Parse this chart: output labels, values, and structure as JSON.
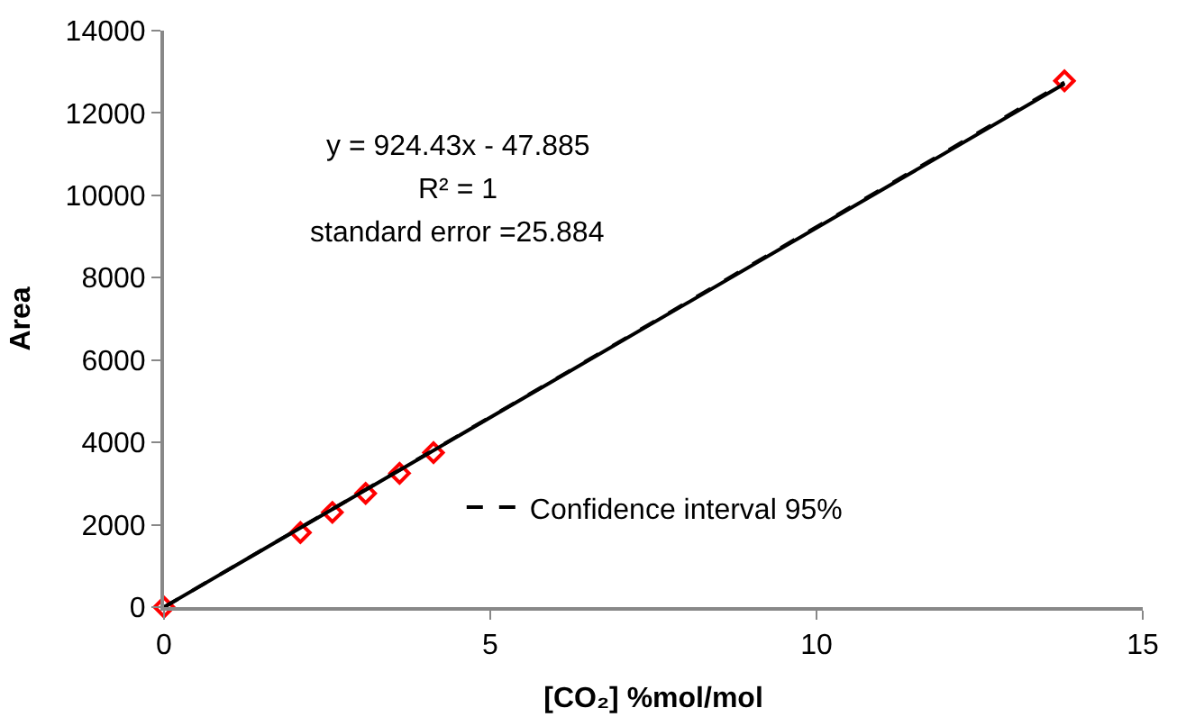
{
  "chart_data": {
    "type": "scatter",
    "xlabel": "[CO₂] %mol/mol",
    "ylabel": "Area",
    "xlim": [
      0,
      15
    ],
    "xticks": [
      0,
      5,
      10,
      15
    ],
    "ylim": [
      0,
      14000
    ],
    "yticks": [
      0,
      2000,
      4000,
      6000,
      8000,
      10000,
      12000,
      14000
    ],
    "legend": "bottom right",
    "series": [
      {
        "color": "#ff0000",
        "marker": "diamond",
        "x": [
          0,
          2.09,
          2.58,
          3.09,
          3.61,
          4.13,
          13.8
        ],
        "values": [
          0,
          1810,
          2300,
          2760,
          3250,
          3750,
          12780
        ]
      },
      {
        "type": "line",
        "color": "#000000",
        "line_style": "solid",
        "x": [
          0,
          13.8
        ],
        "values": [
          0,
          12710
        ]
      },
      {
        "type": "line",
        "name": "Confidence interval 95%",
        "color": "#000000",
        "line_style": "dashed",
        "x": [
          0,
          13.8
        ],
        "values": [
          0,
          12740
        ]
      }
    ],
    "annotations": [
      "y = 924.43x - 47.885",
      "R² = 1",
      "standard error =25.884"
    ]
  }
}
